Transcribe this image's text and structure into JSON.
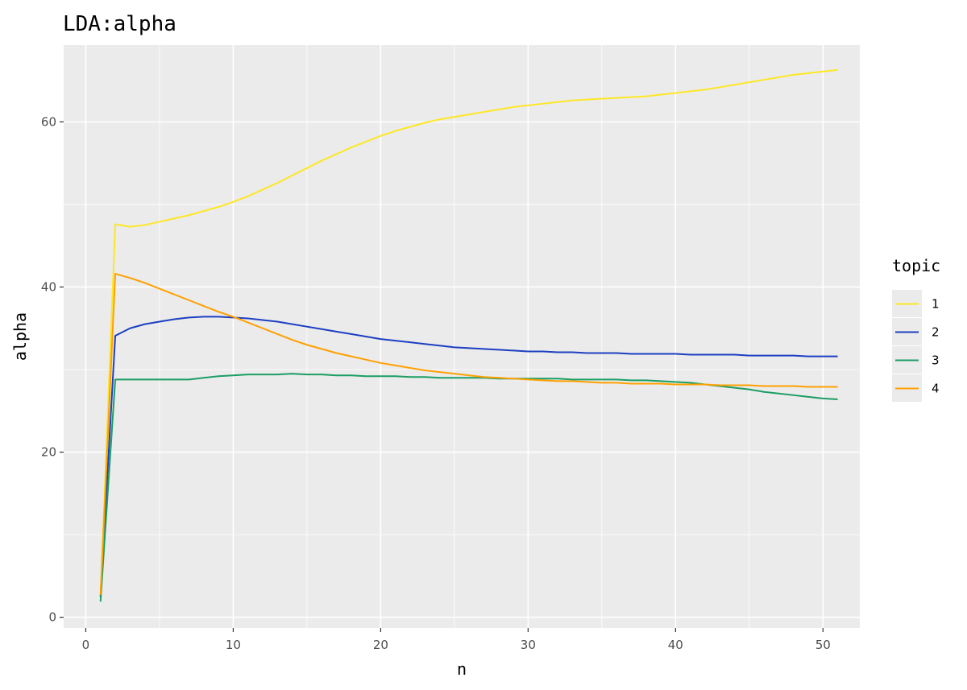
{
  "chart_data": {
    "type": "line",
    "title": "LDA:alpha",
    "xlabel": "n",
    "ylabel": "alpha",
    "xlim": [
      -1.5,
      52.5
    ],
    "ylim": [
      -1.3,
      69.3
    ],
    "x_ticks": [
      0,
      10,
      20,
      30,
      40,
      50
    ],
    "y_ticks": [
      0,
      20,
      40,
      60
    ],
    "grid": true,
    "panel_background": "#ebebeb",
    "grid_color": "#ffffff",
    "legend": {
      "title": "topic",
      "position": "right"
    },
    "series": [
      {
        "name": "1",
        "color": "#fde725",
        "points": [
          [
            1,
            2.3
          ],
          [
            2,
            47.6
          ],
          [
            3,
            47.3
          ],
          [
            4,
            47.5
          ],
          [
            5,
            47.9
          ],
          [
            6,
            48.3
          ],
          [
            7,
            48.7
          ],
          [
            8,
            49.2
          ],
          [
            9,
            49.7
          ],
          [
            10,
            50.3
          ],
          [
            11,
            51.0
          ],
          [
            12,
            51.8
          ],
          [
            13,
            52.6
          ],
          [
            14,
            53.5
          ],
          [
            15,
            54.4
          ],
          [
            16,
            55.3
          ],
          [
            17,
            56.1
          ],
          [
            18,
            56.9
          ],
          [
            19,
            57.6
          ],
          [
            20,
            58.3
          ],
          [
            21,
            58.9
          ],
          [
            22,
            59.4
          ],
          [
            23,
            59.9
          ],
          [
            24,
            60.3
          ],
          [
            25,
            60.6
          ],
          [
            26,
            60.9
          ],
          [
            27,
            61.2
          ],
          [
            28,
            61.5
          ],
          [
            29,
            61.8
          ],
          [
            30,
            62.0
          ],
          [
            31,
            62.2
          ],
          [
            32,
            62.4
          ],
          [
            33,
            62.6
          ],
          [
            34,
            62.7
          ],
          [
            35,
            62.8
          ],
          [
            36,
            62.9
          ],
          [
            37,
            63.0
          ],
          [
            38,
            63.1
          ],
          [
            39,
            63.3
          ],
          [
            40,
            63.5
          ],
          [
            41,
            63.7
          ],
          [
            42,
            63.9
          ],
          [
            43,
            64.2
          ],
          [
            44,
            64.5
          ],
          [
            45,
            64.8
          ],
          [
            46,
            65.1
          ],
          [
            47,
            65.4
          ],
          [
            48,
            65.7
          ],
          [
            49,
            65.9
          ],
          [
            50,
            66.1
          ],
          [
            51,
            66.3
          ]
        ]
      },
      {
        "name": "2",
        "color": "#1c3fc2",
        "points": [
          [
            1,
            2.5
          ],
          [
            2,
            34.1
          ],
          [
            3,
            35.0
          ],
          [
            4,
            35.5
          ],
          [
            5,
            35.8
          ],
          [
            6,
            36.1
          ],
          [
            7,
            36.3
          ],
          [
            8,
            36.4
          ],
          [
            9,
            36.4
          ],
          [
            10,
            36.3
          ],
          [
            11,
            36.2
          ],
          [
            12,
            36.0
          ],
          [
            13,
            35.8
          ],
          [
            14,
            35.5
          ],
          [
            15,
            35.2
          ],
          [
            16,
            34.9
          ],
          [
            17,
            34.6
          ],
          [
            18,
            34.3
          ],
          [
            19,
            34.0
          ],
          [
            20,
            33.7
          ],
          [
            21,
            33.5
          ],
          [
            22,
            33.3
          ],
          [
            23,
            33.1
          ],
          [
            24,
            32.9
          ],
          [
            25,
            32.7
          ],
          [
            26,
            32.6
          ],
          [
            27,
            32.5
          ],
          [
            28,
            32.4
          ],
          [
            29,
            32.3
          ],
          [
            30,
            32.2
          ],
          [
            31,
            32.2
          ],
          [
            32,
            32.1
          ],
          [
            33,
            32.1
          ],
          [
            34,
            32.0
          ],
          [
            35,
            32.0
          ],
          [
            36,
            32.0
          ],
          [
            37,
            31.9
          ],
          [
            38,
            31.9
          ],
          [
            39,
            31.9
          ],
          [
            40,
            31.9
          ],
          [
            41,
            31.8
          ],
          [
            42,
            31.8
          ],
          [
            43,
            31.8
          ],
          [
            44,
            31.8
          ],
          [
            45,
            31.7
          ],
          [
            46,
            31.7
          ],
          [
            47,
            31.7
          ],
          [
            48,
            31.7
          ],
          [
            49,
            31.6
          ],
          [
            50,
            31.6
          ],
          [
            51,
            31.6
          ]
        ]
      },
      {
        "name": "3",
        "color": "#1b9e64",
        "points": [
          [
            1,
            1.9
          ],
          [
            2,
            28.8
          ],
          [
            3,
            28.8
          ],
          [
            4,
            28.8
          ],
          [
            5,
            28.8
          ],
          [
            6,
            28.8
          ],
          [
            7,
            28.8
          ],
          [
            8,
            29.0
          ],
          [
            9,
            29.2
          ],
          [
            10,
            29.3
          ],
          [
            11,
            29.4
          ],
          [
            12,
            29.4
          ],
          [
            13,
            29.4
          ],
          [
            14,
            29.5
          ],
          [
            15,
            29.4
          ],
          [
            16,
            29.4
          ],
          [
            17,
            29.3
          ],
          [
            18,
            29.3
          ],
          [
            19,
            29.2
          ],
          [
            20,
            29.2
          ],
          [
            21,
            29.2
          ],
          [
            22,
            29.1
          ],
          [
            23,
            29.1
          ],
          [
            24,
            29.0
          ],
          [
            25,
            29.0
          ],
          [
            26,
            29.0
          ],
          [
            27,
            29.0
          ],
          [
            28,
            28.9
          ],
          [
            29,
            28.9
          ],
          [
            30,
            28.9
          ],
          [
            31,
            28.9
          ],
          [
            32,
            28.9
          ],
          [
            33,
            28.8
          ],
          [
            34,
            28.8
          ],
          [
            35,
            28.8
          ],
          [
            36,
            28.8
          ],
          [
            37,
            28.7
          ],
          [
            38,
            28.7
          ],
          [
            39,
            28.6
          ],
          [
            40,
            28.5
          ],
          [
            41,
            28.4
          ],
          [
            42,
            28.2
          ],
          [
            43,
            28.0
          ],
          [
            44,
            27.8
          ],
          [
            45,
            27.6
          ],
          [
            46,
            27.3
          ],
          [
            47,
            27.1
          ],
          [
            48,
            26.9
          ],
          [
            49,
            26.7
          ],
          [
            50,
            26.5
          ],
          [
            51,
            26.4
          ]
        ]
      },
      {
        "name": "4",
        "color": "#ffa000",
        "points": [
          [
            1,
            2.7
          ],
          [
            2,
            41.6
          ],
          [
            3,
            41.1
          ],
          [
            4,
            40.5
          ],
          [
            5,
            39.8
          ],
          [
            6,
            39.1
          ],
          [
            7,
            38.4
          ],
          [
            8,
            37.7
          ],
          [
            9,
            37.0
          ],
          [
            10,
            36.4
          ],
          [
            11,
            35.7
          ],
          [
            12,
            35.0
          ],
          [
            13,
            34.3
          ],
          [
            14,
            33.6
          ],
          [
            15,
            33.0
          ],
          [
            16,
            32.5
          ],
          [
            17,
            32.0
          ],
          [
            18,
            31.6
          ],
          [
            19,
            31.2
          ],
          [
            20,
            30.8
          ],
          [
            21,
            30.5
          ],
          [
            22,
            30.2
          ],
          [
            23,
            29.9
          ],
          [
            24,
            29.7
          ],
          [
            25,
            29.5
          ],
          [
            26,
            29.3
          ],
          [
            27,
            29.1
          ],
          [
            28,
            29.0
          ],
          [
            29,
            28.9
          ],
          [
            30,
            28.8
          ],
          [
            31,
            28.7
          ],
          [
            32,
            28.6
          ],
          [
            33,
            28.6
          ],
          [
            34,
            28.5
          ],
          [
            35,
            28.4
          ],
          [
            36,
            28.4
          ],
          [
            37,
            28.3
          ],
          [
            38,
            28.3
          ],
          [
            39,
            28.3
          ],
          [
            40,
            28.2
          ],
          [
            41,
            28.2
          ],
          [
            42,
            28.2
          ],
          [
            43,
            28.1
          ],
          [
            44,
            28.1
          ],
          [
            45,
            28.1
          ],
          [
            46,
            28.0
          ],
          [
            47,
            28.0
          ],
          [
            48,
            28.0
          ],
          [
            49,
            27.9
          ],
          [
            50,
            27.9
          ],
          [
            51,
            27.9
          ]
        ]
      }
    ]
  }
}
